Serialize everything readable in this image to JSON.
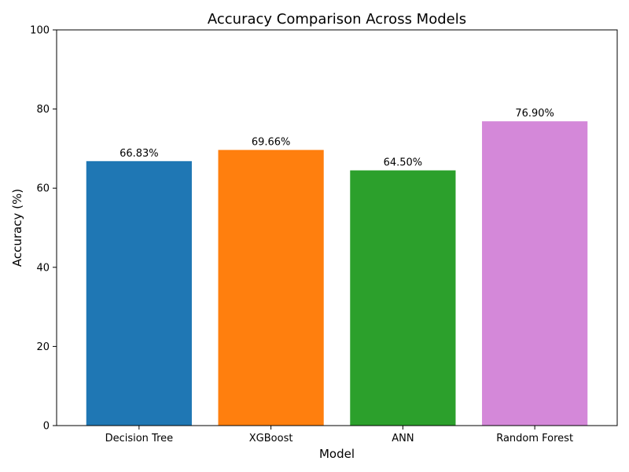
{
  "chart_data": {
    "type": "bar",
    "title": "Accuracy Comparison Across Models",
    "xlabel": "Model",
    "ylabel": "Accuracy (%)",
    "categories": [
      "Decision Tree",
      "XGBoost",
      "ANN",
      "Random Forest"
    ],
    "values": [
      66.83,
      69.66,
      64.5,
      76.9
    ],
    "data_labels": [
      "66.83%",
      "69.66%",
      "64.50%",
      "76.90%"
    ],
    "colors": [
      "#1f77b4",
      "#ff7f0e",
      "#2ca02c",
      "#d488d9"
    ],
    "ylim": [
      0,
      100
    ],
    "yticks": [
      0,
      20,
      40,
      60,
      80,
      100
    ],
    "grid": false,
    "legend": "none"
  }
}
